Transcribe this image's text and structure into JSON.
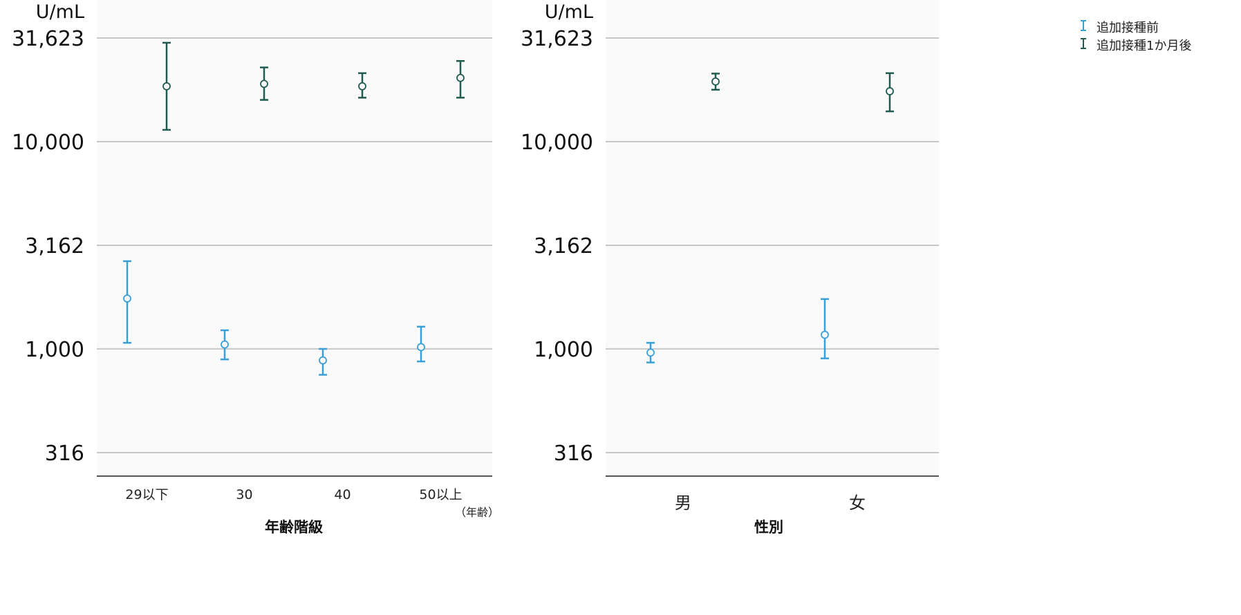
{
  "chart_data": [
    {
      "type": "errorbar",
      "ylabel": "U/mL",
      "yscale": "log",
      "yticks": [
        316,
        1000,
        3162,
        10000,
        31623
      ],
      "ytick_labels": [
        "316",
        "1,000",
        "3,162",
        "10,000",
        "31,623"
      ],
      "xlabel": "年齢階級",
      "x_unit_note": "（年齢）",
      "categories": [
        "29以下",
        "30",
        "40",
        "50以上"
      ],
      "series": [
        {
          "name": "追加接種前",
          "color": "#3a9fd6",
          "mean": [
            1750,
            1050,
            880,
            1020
          ],
          "lower": [
            1070,
            890,
            750,
            870
          ],
          "upper": [
            2650,
            1230,
            1000,
            1280
          ]
        },
        {
          "name": "追加接種1か月後",
          "color": "#1f5b50",
          "mean": [
            18500,
            19000,
            18500,
            20300
          ],
          "lower": [
            11400,
            15900,
            16300,
            16300
          ],
          "upper": [
            30000,
            22800,
            21400,
            24500
          ]
        }
      ]
    },
    {
      "type": "errorbar",
      "ylabel": "U/mL",
      "yscale": "log",
      "yticks": [
        316,
        1000,
        3162,
        10000,
        31623
      ],
      "ytick_labels": [
        "316",
        "1,000",
        "3,162",
        "10,000",
        "31,623"
      ],
      "xlabel": "性別",
      "categories": [
        "男",
        "女"
      ],
      "series": [
        {
          "name": "追加接種前",
          "color": "#3a9fd6",
          "mean": [
            960,
            1170
          ],
          "lower": [
            860,
            900
          ],
          "upper": [
            1070,
            1740
          ]
        },
        {
          "name": "追加接種1か月後",
          "color": "#1f5b50",
          "mean": [
            19500,
            17500
          ],
          "lower": [
            17800,
            14000
          ],
          "upper": [
            21300,
            21400
          ]
        }
      ]
    }
  ],
  "legend": {
    "items": [
      {
        "label": "追加接種前",
        "color": "#3a9fd6"
      },
      {
        "label": "追加接種1か月後",
        "color": "#1f5b50"
      }
    ]
  }
}
